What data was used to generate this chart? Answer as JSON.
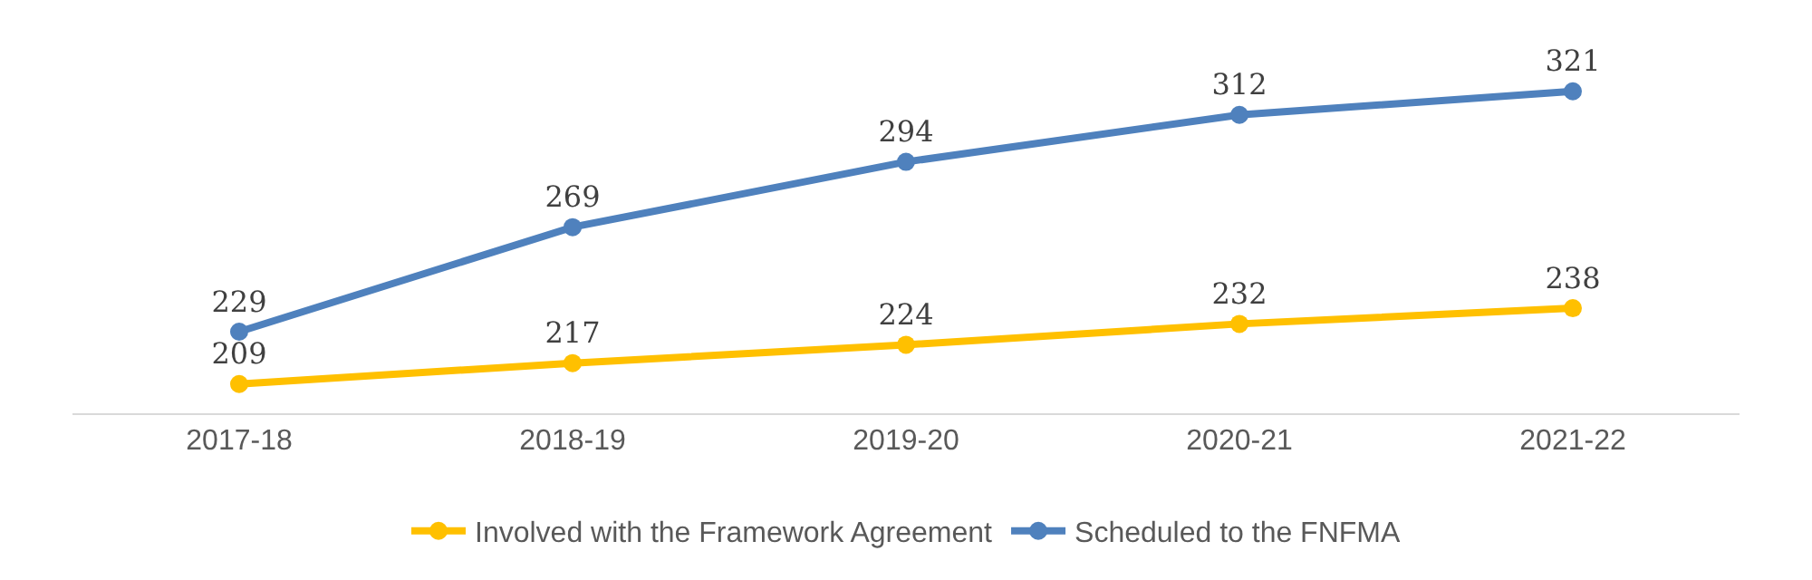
{
  "chart_data": {
    "type": "line",
    "categories": [
      "2017-18",
      "2018-19",
      "2019-20",
      "2020-21",
      "2021-22"
    ],
    "series": [
      {
        "name": "Involved with the Framework Agreement",
        "color": "#ffc000",
        "values": [
          209,
          217,
          224,
          232,
          238
        ]
      },
      {
        "name": "Scheduled to the FNFMA",
        "color": "#4f81bd",
        "values": [
          229,
          269,
          294,
          312,
          321
        ]
      }
    ],
    "tick_labels": "x",
    "data_labels": true,
    "marker": "circle",
    "legend": "bottom"
  }
}
